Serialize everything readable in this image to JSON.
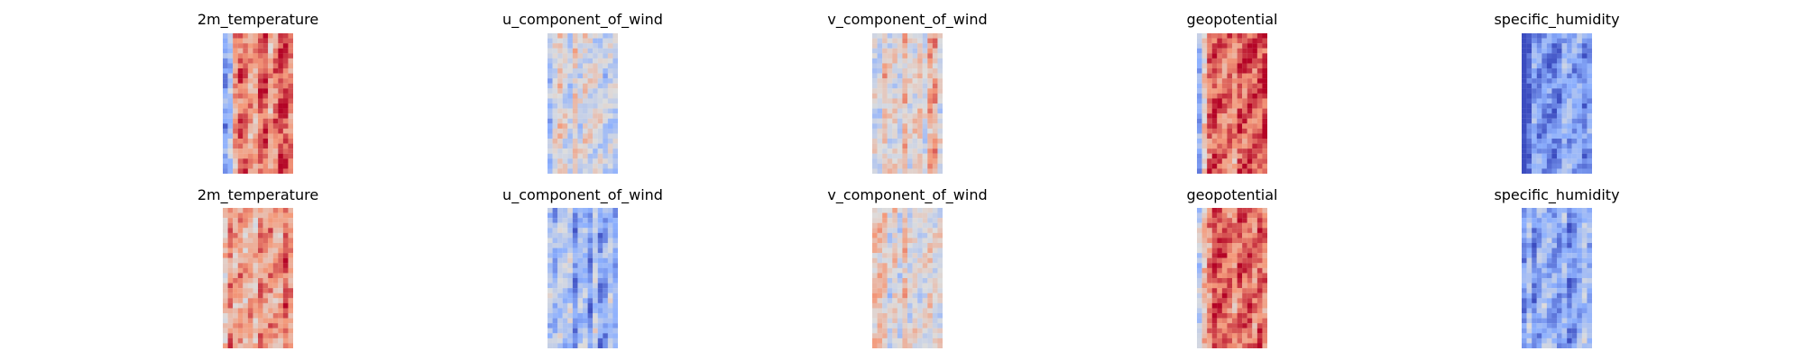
{
  "chart_data": [
    {
      "type": "heatmap",
      "title": "2m_temperature",
      "colormap": "coolwarm",
      "axes": "off",
      "grid": false,
      "row": 1,
      "column": 1,
      "pattern": "cold band on left edge, warm body",
      "base_level": 0.78,
      "left_edge_level": 0.12
    },
    {
      "type": "heatmap",
      "title": "u_component_of_wind",
      "colormap": "coolwarm",
      "axes": "off",
      "grid": false,
      "row": 1,
      "column": 2,
      "pattern": "vertical streaks, mixed red/blue",
      "base_level": 0.48,
      "left_edge_level": 0.4
    },
    {
      "type": "heatmap",
      "title": "v_component_of_wind",
      "colormap": "coolwarm",
      "axes": "off",
      "grid": false,
      "row": 1,
      "column": 3,
      "pattern": "small-scale eddies, mixed",
      "base_level": 0.55,
      "left_edge_level": 0.5
    },
    {
      "type": "heatmap",
      "title": "geopotential",
      "colormap": "coolwarm",
      "axes": "off",
      "grid": false,
      "row": 1,
      "column": 4,
      "pattern": "blue left edge, red body",
      "base_level": 0.8,
      "left_edge_level": 0.2
    },
    {
      "type": "heatmap",
      "title": "specific_humidity",
      "colormap": "coolwarm",
      "axes": "off",
      "grid": false,
      "row": 1,
      "column": 5,
      "pattern": "blue field with red central streak",
      "base_level": 0.2,
      "left_edge_level": 0.05
    },
    {
      "type": "heatmap",
      "title": "2m_temperature",
      "colormap": "coolwarm",
      "axes": "off",
      "grid": false,
      "row": 2,
      "column": 1,
      "pattern": "uniformly warm, mottled",
      "base_level": 0.76,
      "left_edge_level": 0.65
    },
    {
      "type": "heatmap",
      "title": "u_component_of_wind",
      "colormap": "coolwarm",
      "axes": "off",
      "grid": false,
      "row": 2,
      "column": 2,
      "pattern": "mostly cool, streaky",
      "base_level": 0.3,
      "left_edge_level": 0.35
    },
    {
      "type": "heatmap",
      "title": "v_component_of_wind",
      "colormap": "coolwarm",
      "axes": "off",
      "grid": false,
      "row": 2,
      "column": 3,
      "pattern": "mixed eddies, red/blue",
      "base_level": 0.55,
      "left_edge_level": 0.5
    },
    {
      "type": "heatmap",
      "title": "geopotential",
      "colormap": "coolwarm",
      "axes": "off",
      "grid": false,
      "row": 2,
      "column": 4,
      "pattern": "red body, lighter edges",
      "base_level": 0.8,
      "left_edge_level": 0.5
    },
    {
      "type": "heatmap",
      "title": "specific_humidity",
      "colormap": "coolwarm",
      "axes": "off",
      "grid": false,
      "row": 2,
      "column": 5,
      "pattern": "mostly blue, light speckles",
      "base_level": 0.25,
      "left_edge_level": 0.2
    }
  ]
}
